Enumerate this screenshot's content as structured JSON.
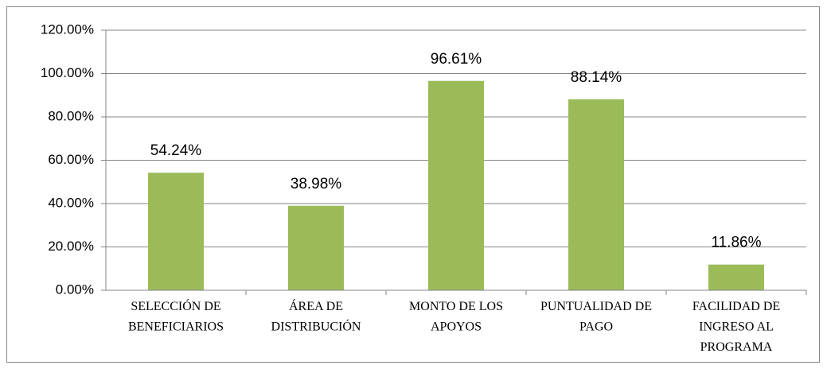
{
  "chart_data": {
    "type": "bar",
    "categories": [
      "SELECCIÓN DE BENEFICIARIOS",
      "ÁREA DE DISTRIBUCIÓN",
      "MONTO DE LOS APOYOS",
      "PUNTUALIDAD DE PAGO",
      "FACILIDAD DE INGRESO AL PROGRAMA"
    ],
    "values": [
      54.24,
      38.98,
      96.61,
      88.14,
      11.86
    ],
    "value_labels": [
      "54.24%",
      "38.98%",
      "96.61%",
      "88.14%",
      "11.86%"
    ],
    "color": "#9bbb59",
    "ylim": [
      0,
      120
    ],
    "yticks": [
      {
        "value": 0,
        "label": "0.00%"
      },
      {
        "value": 20,
        "label": "20.00%"
      },
      {
        "value": 40,
        "label": "40.00%"
      },
      {
        "value": 60,
        "label": "60.00%"
      },
      {
        "value": 80,
        "label": "80.00%"
      },
      {
        "value": 100,
        "label": "100.00%"
      },
      {
        "value": 120,
        "label": "120.00%"
      }
    ],
    "grid": true
  }
}
